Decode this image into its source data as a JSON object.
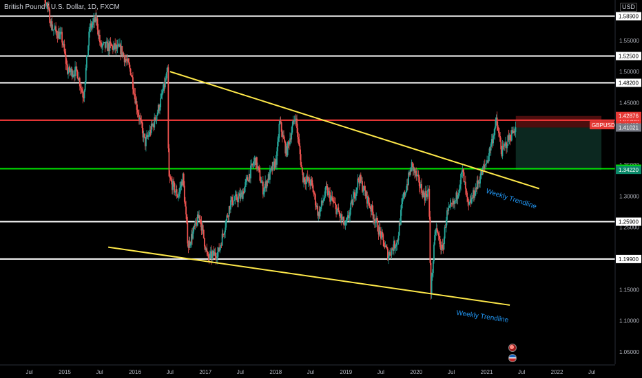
{
  "header": {
    "title": "British Pound / U.S. Dollar, 1D, FXCM",
    "currency": "USD"
  },
  "chart_data": {
    "type": "candlestick",
    "instrument": "GBPUSD",
    "timeframe": "1D",
    "x_range": [
      "2014-06",
      "2022-10"
    ],
    "y_range": [
      1.03,
      1.615
    ],
    "y_ticks": [
      "1.05000",
      "1.10000",
      "1.15000",
      "1.20000",
      "1.25000",
      "1.30000",
      "1.35000",
      "1.45000",
      "1.50000",
      "1.55000"
    ],
    "x_ticks": [
      {
        "label": "Jul",
        "date": "2014-07-01"
      },
      {
        "label": "2015",
        "date": "2015-01-01"
      },
      {
        "label": "Jul",
        "date": "2015-07-01"
      },
      {
        "label": "2016",
        "date": "2016-01-01"
      },
      {
        "label": "Jul",
        "date": "2016-07-01"
      },
      {
        "label": "2017",
        "date": "2017-01-01"
      },
      {
        "label": "Jul",
        "date": "2017-07-01"
      },
      {
        "label": "2018",
        "date": "2018-01-01"
      },
      {
        "label": "Jul",
        "date": "2018-07-01"
      },
      {
        "label": "2019",
        "date": "2019-01-01"
      },
      {
        "label": "Jul",
        "date": "2019-07-01"
      },
      {
        "label": "2020",
        "date": "2020-01-01"
      },
      {
        "label": "Jul",
        "date": "2020-07-01"
      },
      {
        "label": "2021",
        "date": "2021-01-01"
      },
      {
        "label": "Jul",
        "date": "2021-07-01"
      },
      {
        "label": "2022",
        "date": "2022-01-01"
      },
      {
        "label": "Jul",
        "date": "2022-07-01"
      }
    ],
    "horizontal_levels": [
      {
        "value": 1.589,
        "label": "1.58900",
        "color": "#ffffff"
      },
      {
        "value": 1.525,
        "label": "1.52500",
        "color": "#ffffff"
      },
      {
        "value": 1.482,
        "label": "1.48200",
        "color": "#ffffff"
      },
      {
        "value": 1.422,
        "label": "1.42200",
        "color": "#ff3b3b"
      },
      {
        "value": 1.344,
        "label": "1.34400",
        "color": "#00e600"
      },
      {
        "value": 1.259,
        "label": "1.25900",
        "color": "#ffffff"
      },
      {
        "value": 1.199,
        "label": "1.19900",
        "color": "#ffffff"
      }
    ],
    "price_labels": [
      {
        "value": 1.42876,
        "label": "1.42876",
        "color": "#e53935"
      },
      {
        "value": 1.41403,
        "label": "1.41403",
        "color": "#e53935",
        "tag": "GBPUSD"
      },
      {
        "value": 1.41021,
        "label": "1.41021",
        "color": "#787b86"
      },
      {
        "value": 1.3422,
        "label": "1.34220",
        "color": "#0b8a6a"
      }
    ],
    "trendlines": [
      {
        "from": {
          "date": "2016-07-01",
          "price": 1.5
        },
        "to": {
          "date": "2021-10-01",
          "price": 1.312
        },
        "label": "Weekly Trendline",
        "color": "#ffe94a"
      },
      {
        "from": {
          "date": "2015-08-15",
          "price": 1.218
        },
        "to": {
          "date": "2021-05-01",
          "price": 1.125
        },
        "label": "Weekly Trendline",
        "color": "#ffe94a"
      }
    ],
    "position": {
      "start": "2021-06-01",
      "end": "2022-08-20",
      "entry": 1.41021,
      "stop": 1.42876,
      "target": 1.3422
    },
    "price_path": [
      {
        "date": "2014-06-01",
        "price": 1.7
      },
      {
        "date": "2014-09-01",
        "price": 1.65
      },
      {
        "date": "2014-11-01",
        "price": 1.57
      },
      {
        "date": "2014-12-20",
        "price": 1.555
      },
      {
        "date": "2015-01-20",
        "price": 1.5
      },
      {
        "date": "2015-03-10",
        "price": 1.5
      },
      {
        "date": "2015-04-12",
        "price": 1.46
      },
      {
        "date": "2015-05-15",
        "price": 1.57
      },
      {
        "date": "2015-06-18",
        "price": 1.585
      },
      {
        "date": "2015-07-10",
        "price": 1.54
      },
      {
        "date": "2015-09-01",
        "price": 1.54
      },
      {
        "date": "2015-10-25",
        "price": 1.535
      },
      {
        "date": "2015-12-15",
        "price": 1.5
      },
      {
        "date": "2016-01-10",
        "price": 1.45
      },
      {
        "date": "2016-02-26",
        "price": 1.385
      },
      {
        "date": "2016-04-15",
        "price": 1.42
      },
      {
        "date": "2016-05-15",
        "price": 1.45
      },
      {
        "date": "2016-06-23",
        "price": 1.5
      },
      {
        "date": "2016-06-27",
        "price": 1.33
      },
      {
        "date": "2016-08-15",
        "price": 1.3
      },
      {
        "date": "2016-09-10",
        "price": 1.33
      },
      {
        "date": "2016-10-07",
        "price": 1.22
      },
      {
        "date": "2016-12-05",
        "price": 1.27
      },
      {
        "date": "2017-01-16",
        "price": 1.2
      },
      {
        "date": "2017-03-14",
        "price": 1.21
      },
      {
        "date": "2017-05-15",
        "price": 1.29
      },
      {
        "date": "2017-07-10",
        "price": 1.3
      },
      {
        "date": "2017-09-20",
        "price": 1.36
      },
      {
        "date": "2017-11-01",
        "price": 1.31
      },
      {
        "date": "2018-01-10",
        "price": 1.36
      },
      {
        "date": "2018-01-25",
        "price": 1.42
      },
      {
        "date": "2018-03-01",
        "price": 1.37
      },
      {
        "date": "2018-04-17",
        "price": 1.43
      },
      {
        "date": "2018-05-25",
        "price": 1.33
      },
      {
        "date": "2018-07-10",
        "price": 1.32
      },
      {
        "date": "2018-08-15",
        "price": 1.27
      },
      {
        "date": "2018-09-25",
        "price": 1.31
      },
      {
        "date": "2018-11-15",
        "price": 1.28
      },
      {
        "date": "2019-01-03",
        "price": 1.25
      },
      {
        "date": "2019-03-13",
        "price": 1.33
      },
      {
        "date": "2019-05-15",
        "price": 1.28
      },
      {
        "date": "2019-08-12",
        "price": 1.205
      },
      {
        "date": "2019-09-30",
        "price": 1.23
      },
      {
        "date": "2019-10-25",
        "price": 1.29
      },
      {
        "date": "2019-12-13",
        "price": 1.35
      },
      {
        "date": "2020-02-15",
        "price": 1.3
      },
      {
        "date": "2020-03-10",
        "price": 1.31
      },
      {
        "date": "2020-03-20",
        "price": 1.145
      },
      {
        "date": "2020-04-15",
        "price": 1.25
      },
      {
        "date": "2020-05-20",
        "price": 1.21
      },
      {
        "date": "2020-06-10",
        "price": 1.27
      },
      {
        "date": "2020-07-25",
        "price": 1.29
      },
      {
        "date": "2020-09-01",
        "price": 1.34
      },
      {
        "date": "2020-10-01",
        "price": 1.28
      },
      {
        "date": "2020-12-01",
        "price": 1.33
      },
      {
        "date": "2021-01-10",
        "price": 1.36
      },
      {
        "date": "2021-02-24",
        "price": 1.42
      },
      {
        "date": "2021-03-25",
        "price": 1.37
      },
      {
        "date": "2021-04-25",
        "price": 1.39
      },
      {
        "date": "2021-05-15",
        "price": 1.4
      },
      {
        "date": "2021-06-01",
        "price": 1.41
      }
    ]
  },
  "events": {
    "items": [
      {
        "icon": "earnings-event-icon"
      },
      {
        "icon": "us-flag-event-icon"
      }
    ]
  }
}
